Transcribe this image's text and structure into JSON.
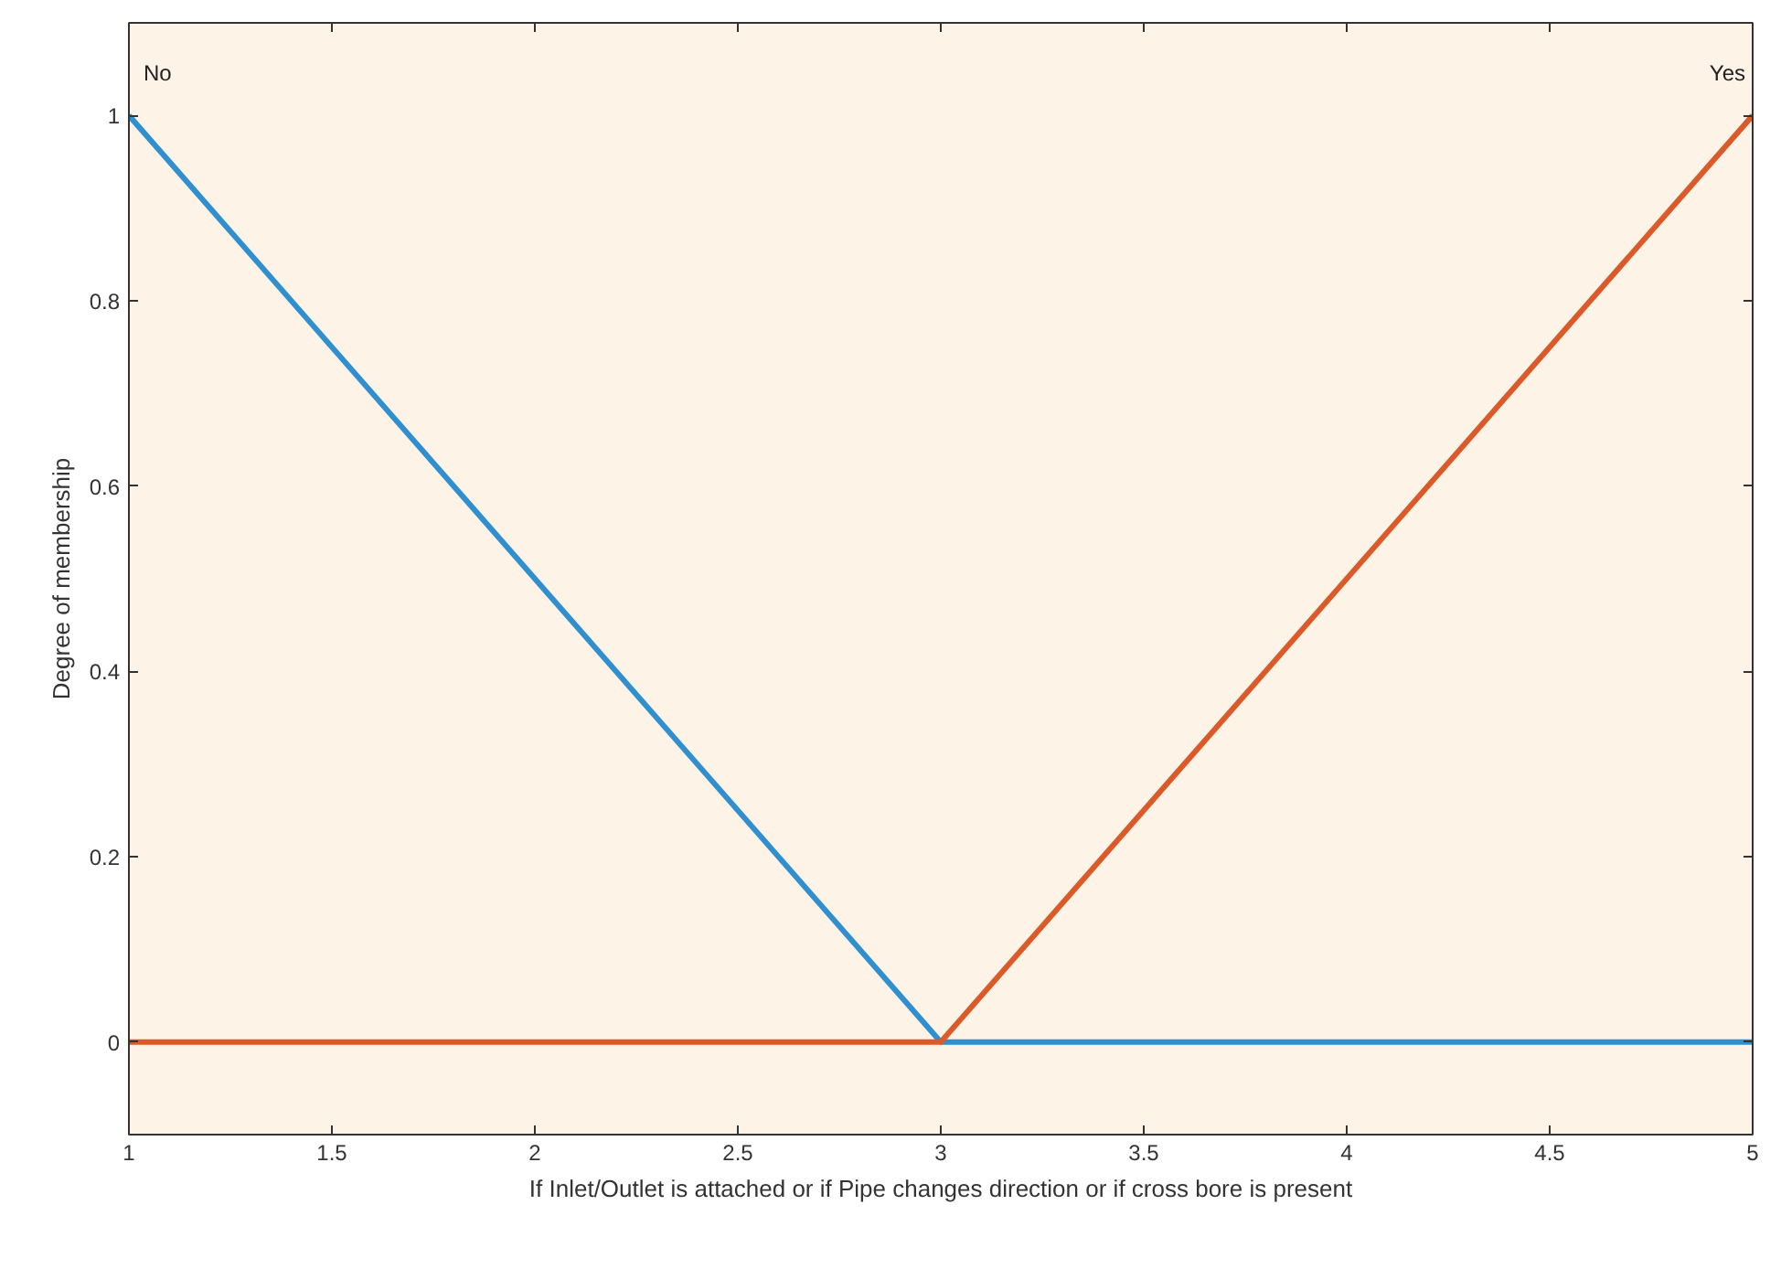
{
  "chart_data": {
    "type": "line",
    "xlabel": "If Inlet/Outlet is attached or if Pipe changes direction or if cross bore is present",
    "ylabel": "Degree of membership",
    "x": [
      1,
      3,
      5
    ],
    "series": [
      {
        "name": "No",
        "color": "#2f8fcf",
        "values": [
          1,
          0,
          0
        ]
      },
      {
        "name": "Yes",
        "color": "#db5a2a",
        "values": [
          0,
          0,
          1
        ]
      }
    ],
    "xlim": [
      1,
      5
    ],
    "xticks": [
      1,
      1.5,
      2,
      2.5,
      3,
      3.5,
      4,
      4.5,
      5
    ],
    "ylim": [
      -0.1,
      1.1
    ],
    "yticks": [
      0,
      0.2,
      0.4,
      0.6,
      0.8,
      1
    ],
    "grid": false,
    "line_style": "solid",
    "marker": "none"
  }
}
